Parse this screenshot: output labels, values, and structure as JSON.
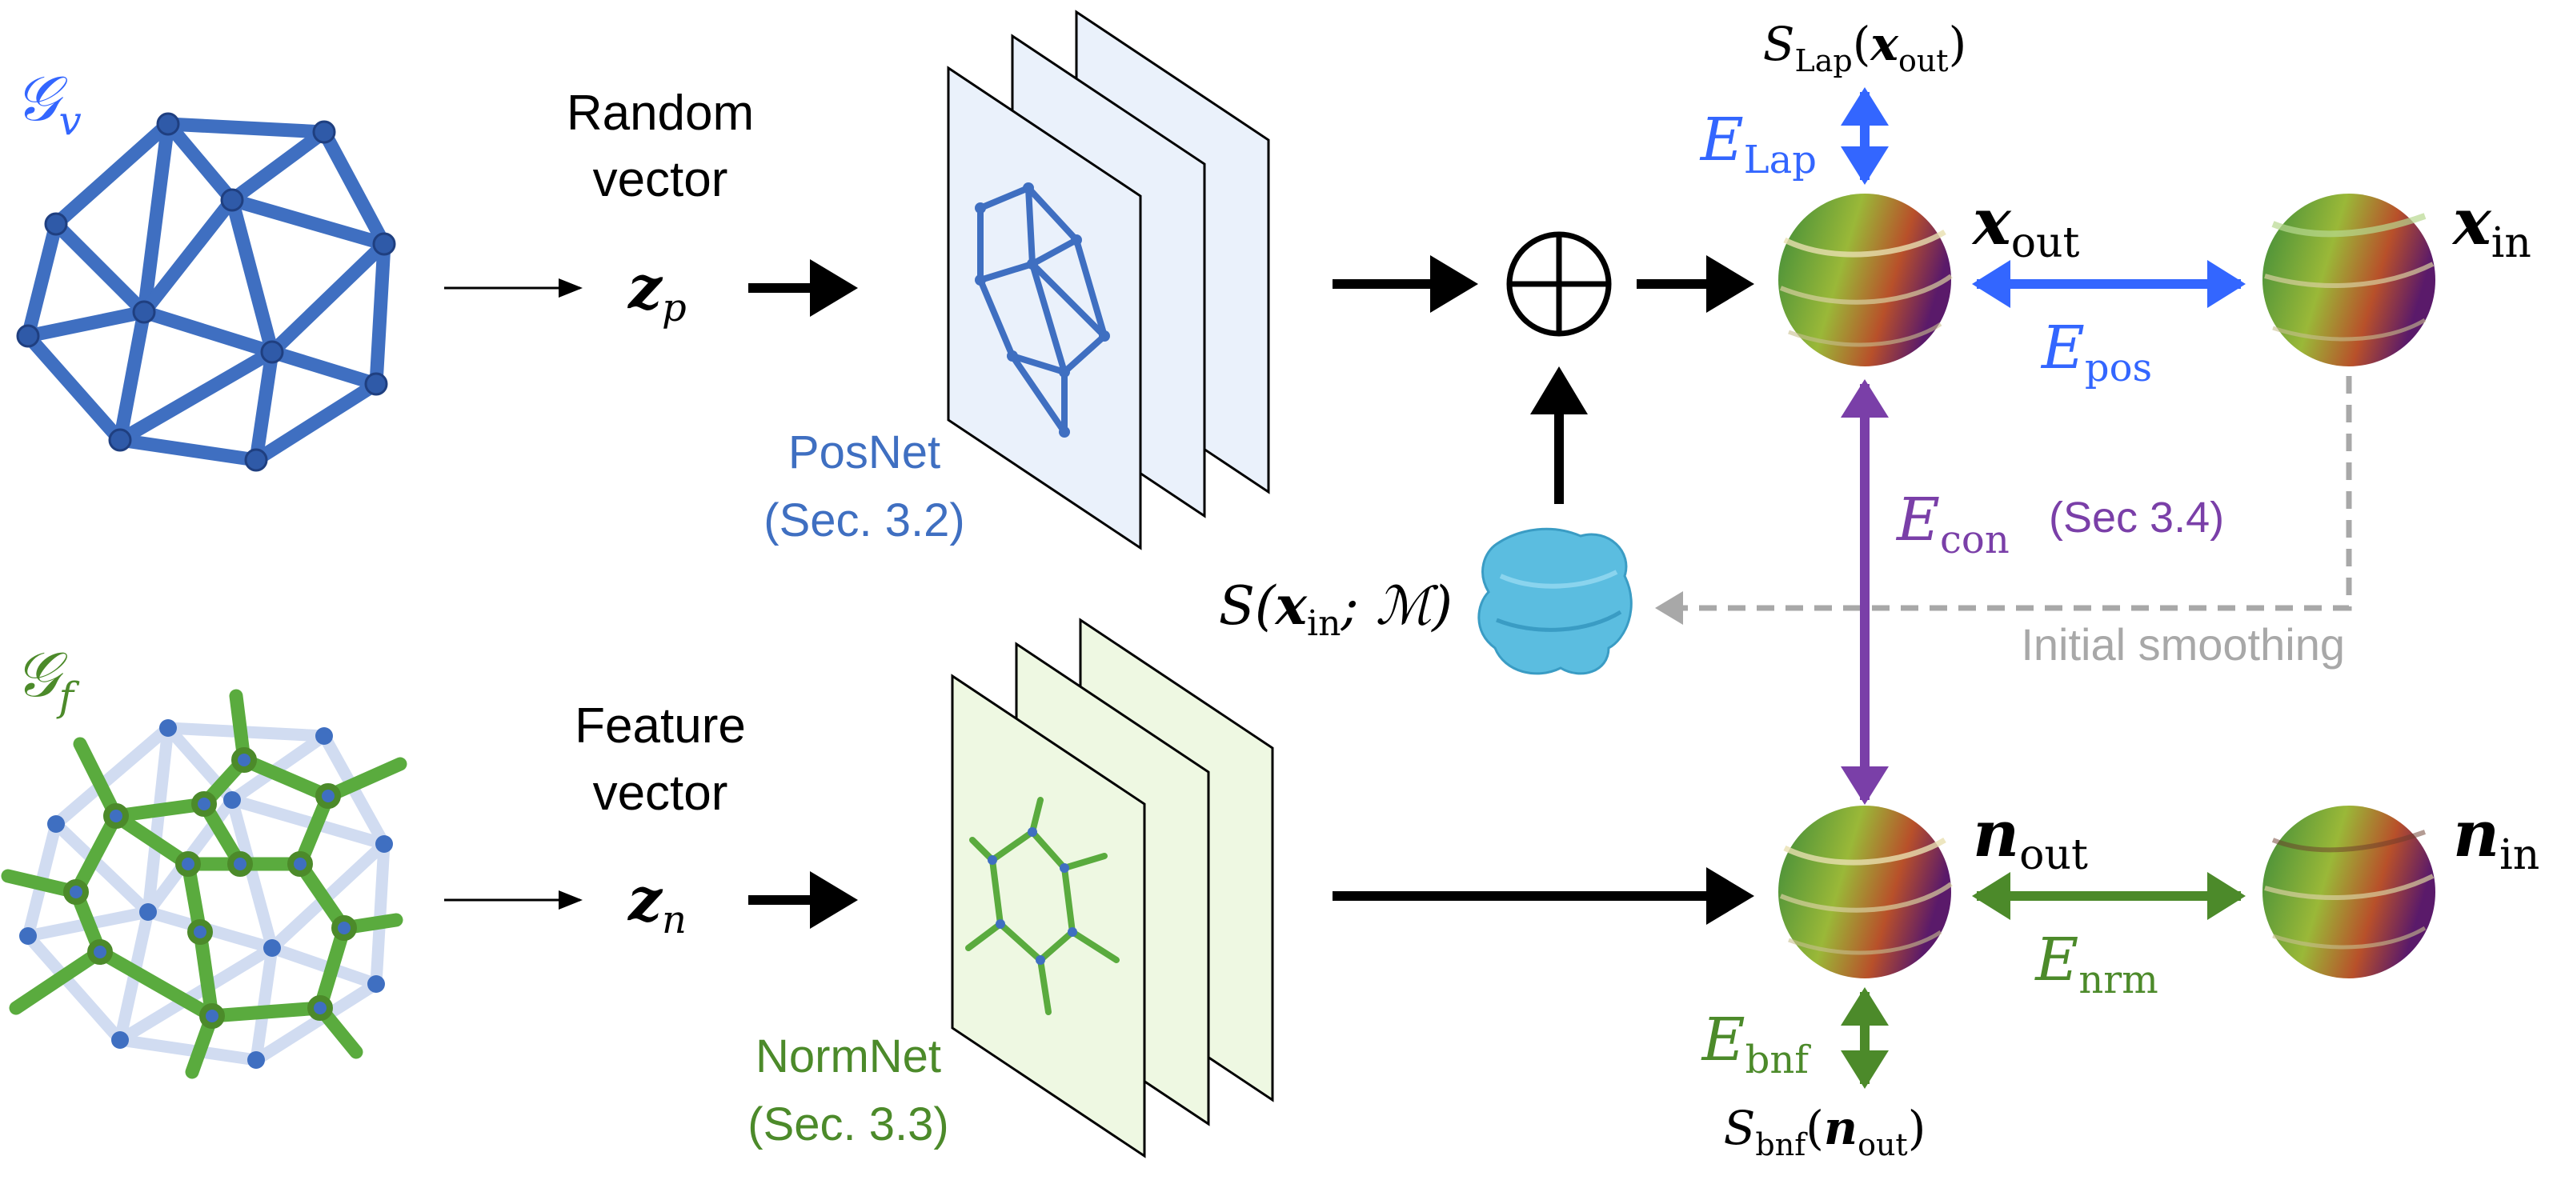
{
  "colors": {
    "pos_blue": "#3366ff",
    "graph_blue": "#3f6fc1",
    "green": "#4c8a2a",
    "purple": "#7a3fa8",
    "gray": "#a8a8a8",
    "black": "#000000",
    "posnet_panel": "#eaf1fb",
    "normnet_panel": "#eef8e2",
    "smooth_shape": "#5bbde0"
  },
  "graphs": {
    "gv_label": "𝒢",
    "gv_sub": "v",
    "gf_label": "𝒢",
    "gf_sub": "f"
  },
  "top_row": {
    "random_vector_line1": "Random",
    "random_vector_line2": "vector",
    "z_label": "z",
    "z_sub": "p",
    "net_name": "PosNet",
    "net_section": "(Sec. 3.2)",
    "oplus": "⊕"
  },
  "bottom_row": {
    "feature_vector_line1": "Feature",
    "feature_vector_line2": "vector",
    "z_label": "z",
    "z_sub": "n",
    "net_name": "NormNet",
    "net_section": "(Sec. 3.3)"
  },
  "smoothing": {
    "s_label": "S(",
    "s_x": "x",
    "s_x_sub": "in",
    "s_rest": "; ℳ)",
    "initial_smoothing": "Initial smoothing"
  },
  "energies": {
    "s_lap_prefix": "S",
    "s_lap_sub": "Lap",
    "s_lap_arg": "x",
    "s_lap_arg_sub": "out",
    "e_lap": "E",
    "e_lap_sub": "Lap",
    "e_pos": "E",
    "e_pos_sub": "pos",
    "e_con": "E",
    "e_con_sub": "con",
    "e_con_ref": "(Sec 3.4)",
    "e_nrm": "E",
    "e_nrm_sub": "nrm",
    "e_bnf": "E",
    "e_bnf_sub": "bnf",
    "s_bnf_prefix": "S",
    "s_bnf_sub": "bnf",
    "s_bnf_arg": "n",
    "s_bnf_arg_sub": "out"
  },
  "outputs": {
    "x_out": "x",
    "x_out_sub": "out",
    "x_in": "x",
    "x_in_sub": "in",
    "n_out": "n",
    "n_out_sub": "out",
    "n_in": "n",
    "n_in_sub": "in"
  }
}
